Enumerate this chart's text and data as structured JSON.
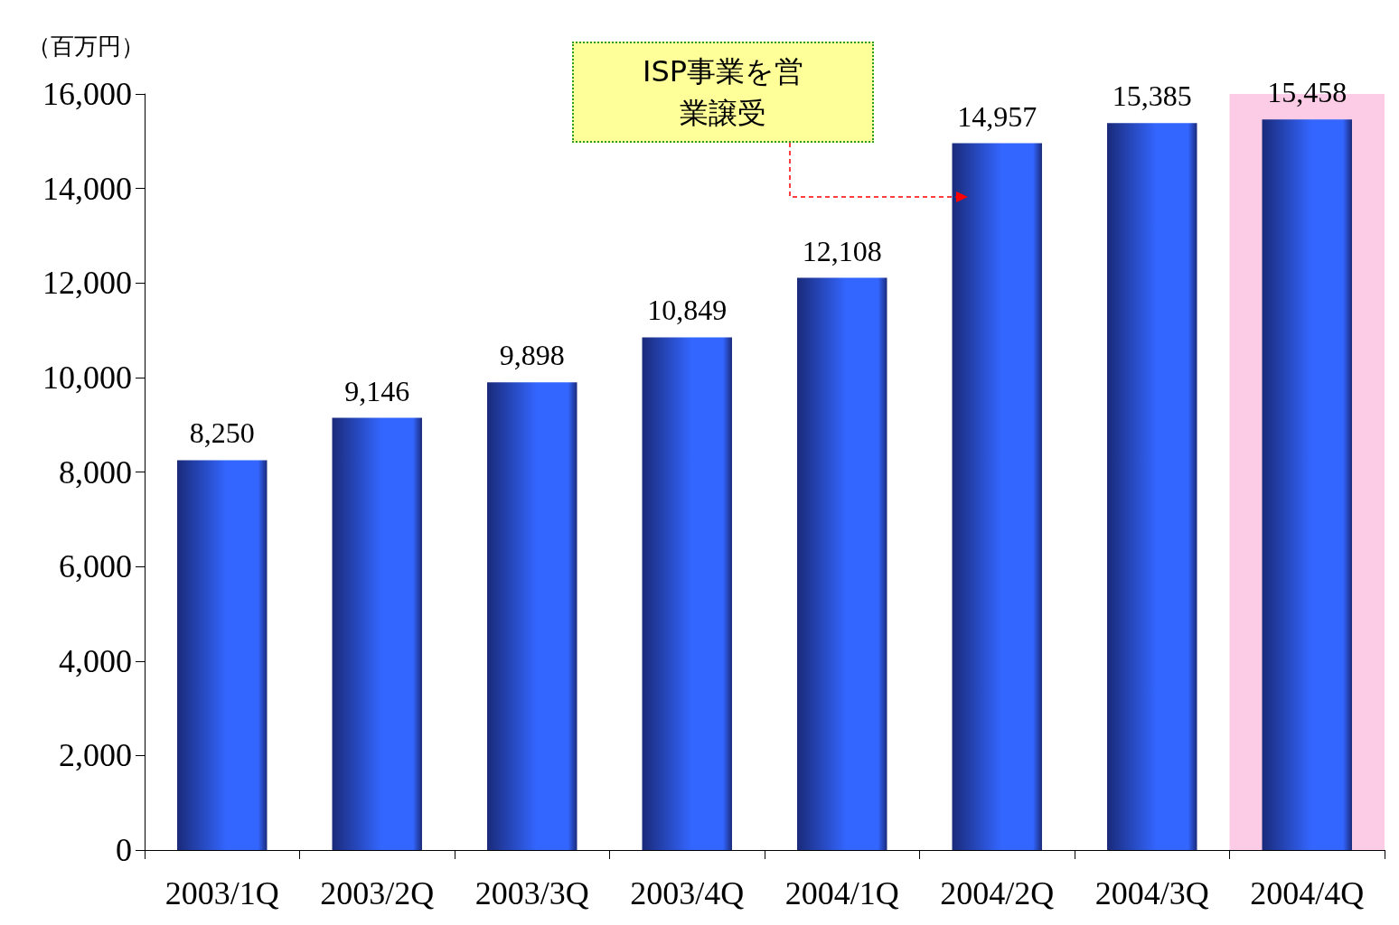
{
  "chart_data": {
    "type": "bar",
    "ylabel": "（百万円）",
    "categories": [
      "2003/1Q",
      "2003/2Q",
      "2003/3Q",
      "2003/4Q",
      "2004/1Q",
      "2004/2Q",
      "2004/3Q",
      "2004/4Q"
    ],
    "values": [
      8250,
      9146,
      9898,
      10849,
      12108,
      14957,
      15385,
      15458
    ],
    "value_labels": [
      "8,250",
      "9,146",
      "9,898",
      "10,849",
      "12,108",
      "14,957",
      "15,385",
      "15,458"
    ],
    "color": "#3366ff",
    "ylim": [
      0,
      16000
    ],
    "yticks": [
      0,
      {
        "value": 2000,
        "label": "2,000"
      },
      {
        "value": 4000,
        "label": "4,000"
      },
      {
        "value": 6000,
        "label": "6,000"
      },
      {
        "value": 8000,
        "label": "8,000"
      },
      {
        "value": 10000,
        "label": "10,000"
      },
      {
        "value": 12000,
        "label": "12,000"
      },
      {
        "value": 14000,
        "label": "14,000"
      },
      {
        "value": 16000,
        "label": "16,000"
      }
    ],
    "grid": false,
    "bands": [
      {
        "axis": "x",
        "from": "2004/4Q",
        "to": "2004/4Q",
        "color": "#fccce6"
      }
    ],
    "annotations": [
      "ISP事業を営業譲受"
    ]
  }
}
